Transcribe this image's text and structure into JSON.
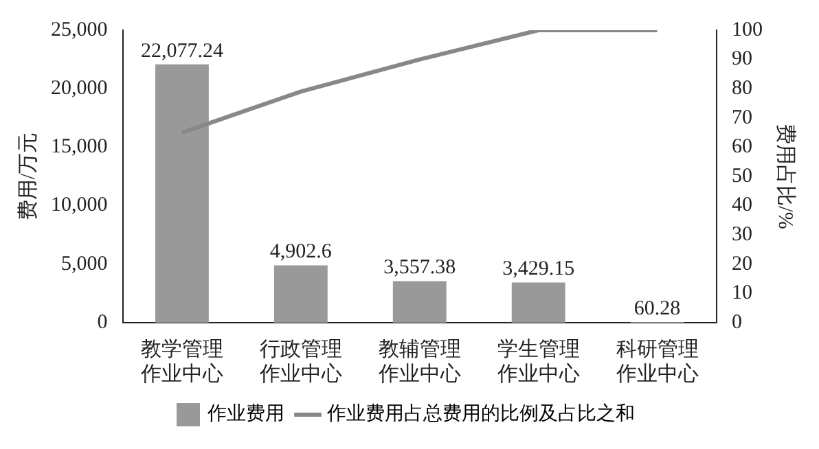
{
  "chart_data": {
    "type": "bar",
    "categories": [
      "教学管理作业中心",
      "行政管理作业中心",
      "教辅管理作业中心",
      "学生管理作业中心",
      "科研管理作业中心"
    ],
    "series": [
      {
        "name": "作业费用",
        "color": "#999999",
        "values": [
          22077.24,
          4902.6,
          3557.38,
          3429.15,
          60.28
        ],
        "value_labels": [
          "22,077.24",
          "4,902.6",
          "3,557.38",
          "3,429.15",
          "60.28"
        ]
      },
      {
        "name": "作业费用占总费用的比例及占比之和",
        "type": "line",
        "axis": "y2",
        "color": "#888888",
        "values": [
          65,
          79,
          90,
          100,
          100
        ]
      }
    ],
    "ylabel": "费用/万元",
    "y2label": "费用占比/%",
    "ylim": [
      0,
      25000
    ],
    "yticks": [
      {
        "value": 0,
        "label": "0"
      },
      {
        "value": 5000,
        "label": "5,000"
      },
      {
        "value": 10000,
        "label": "10,000"
      },
      {
        "value": 15000,
        "label": "15,000"
      },
      {
        "value": 20000,
        "label": "20,000"
      },
      {
        "value": 25000,
        "label": "25,000"
      }
    ],
    "y2lim": [
      0,
      100
    ],
    "y2ticks": [
      0,
      10,
      20,
      30,
      40,
      50,
      60,
      70,
      80,
      90,
      100
    ],
    "grid": false,
    "legend": "bottom",
    "marker": "none"
  }
}
